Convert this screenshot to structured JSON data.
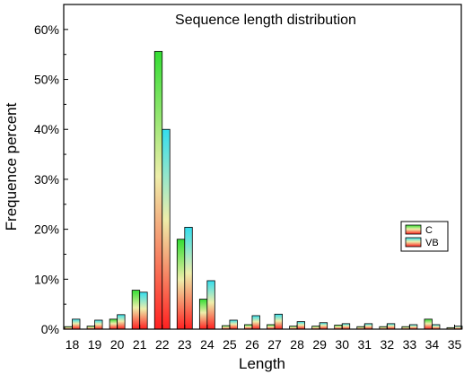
{
  "chart_data": {
    "type": "bar",
    "title": "Sequence length distribution",
    "xlabel": "Length",
    "ylabel": "Frequence percent",
    "categories": [
      "18",
      "19",
      "20",
      "21",
      "22",
      "23",
      "24",
      "25",
      "26",
      "27",
      "28",
      "29",
      "30",
      "31",
      "32",
      "33",
      "34",
      "35"
    ],
    "series": [
      {
        "name": "C",
        "gradient_top": "#33dd33",
        "gradient_bottom": "#ff2020",
        "values": [
          0.5,
          0.6,
          2.0,
          7.8,
          55.6,
          18.0,
          6.0,
          0.7,
          0.9,
          0.9,
          0.6,
          0.6,
          0.8,
          0.5,
          0.5,
          0.5,
          2.0,
          0.3
        ]
      },
      {
        "name": "VB",
        "gradient_top": "#33ddee",
        "gradient_bottom": "#ff2020",
        "values": [
          2.0,
          1.8,
          2.9,
          7.4,
          40.0,
          20.4,
          9.7,
          1.8,
          2.7,
          3.0,
          1.5,
          1.3,
          1.1,
          1.1,
          1.1,
          0.9,
          0.9,
          0.6
        ]
      }
    ],
    "ylim": [
      0,
      65
    ],
    "yticks": [
      0,
      10,
      20,
      30,
      40,
      50,
      60
    ],
    "ytick_labels": [
      "0%",
      "10%",
      "20%",
      "30%",
      "40%",
      "50%",
      "60%"
    ],
    "grid": false,
    "legend_position": "right"
  }
}
